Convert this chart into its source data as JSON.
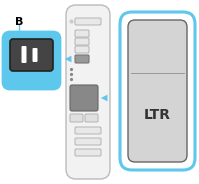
{
  "bg_color": "#ffffff",
  "printer_body_color": "#f2f2f2",
  "printer_body_border": "#bbbbbb",
  "button_color": "#e8e8e8",
  "button_border": "#aaaaaa",
  "wps_button_color": "#999999",
  "wps_button_border": "#777777",
  "large_button_color": "#888888",
  "large_button_border": "#666666",
  "dot_color": "#888888",
  "callout_bg": "#5ec8ec",
  "callout_border": "#5ec8ec",
  "callout_icon_bg": "#444444",
  "callout_icon_border": "#222222",
  "icon_wps_color": "#ffffff",
  "arrow_color": "#5ec8ec",
  "label_B": "B",
  "label_B_fontsize": 8,
  "label_B_color": "#000000",
  "screen_outer_border": "#5ec8ec",
  "screen_outer_bg": "#ffffff",
  "screen_inner_bg": "#d4d4d4",
  "screen_inner_border": "#666666",
  "screen_line_color": "#999999",
  "lcd_text": "LTR",
  "lcd_text_color": "#333333",
  "lcd_text_fontsize": 10,
  "power_led_color": "#cccccc",
  "split_button_color": "#e0e0e0",
  "split_button_border": "#aaaaaa"
}
